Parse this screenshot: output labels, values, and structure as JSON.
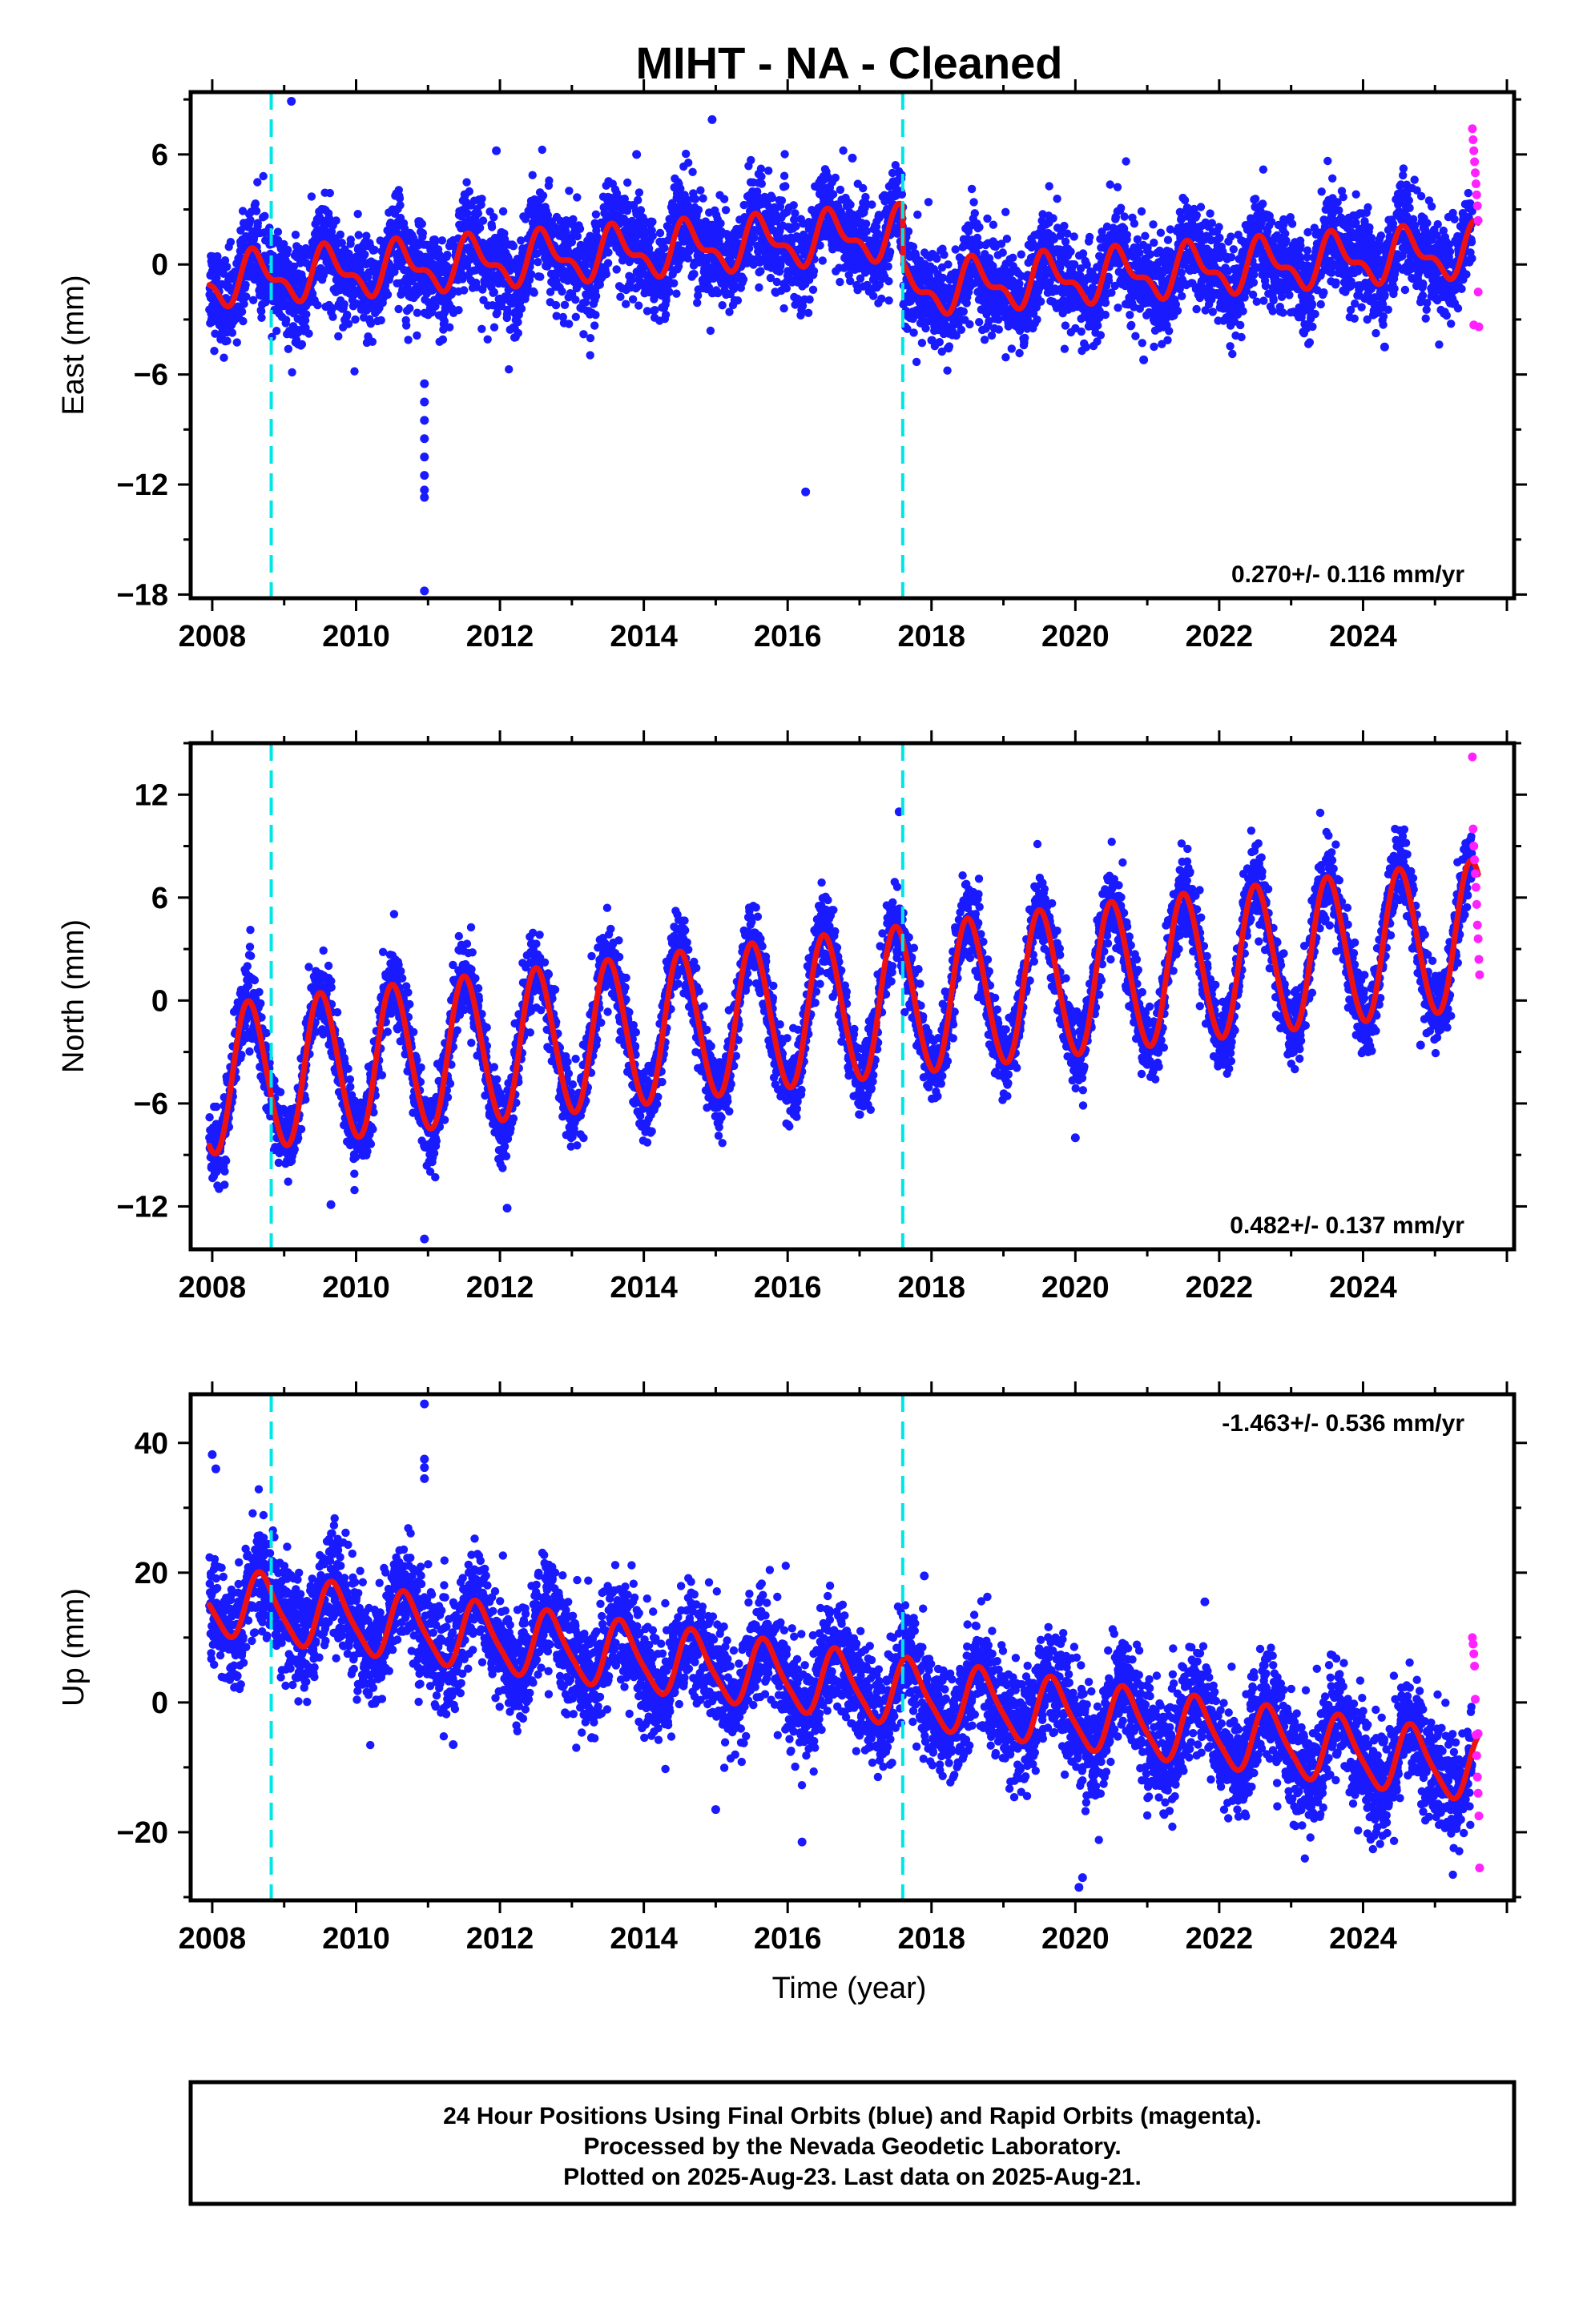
{
  "title": "MIHT  - NA - Cleaned",
  "xlabel": "Time (year)",
  "caption": {
    "lines": [
      "24 Hour Positions Using Final Orbits (blue) and Rapid Orbits (magenta).",
      "Processed by the Nevada Geodetic Laboratory.",
      "Plotted on 2025-Aug-23. Last data on 2025-Aug-21."
    ]
  },
  "colors": {
    "final_orbits": "#1a1aff",
    "rapid_orbits": "#ff22ff",
    "fit_line": "#ee1111",
    "event_line": "#00e5e5"
  },
  "chart_data": [
    {
      "type": "scatter",
      "component": "east",
      "ylabel": "East (mm)",
      "rate_label": "0.270+/- 0.116 mm/yr",
      "rate_position": "bottom-right",
      "xlim": [
        2007.7,
        2026.1
      ],
      "ylim": [
        -18.2,
        9.4
      ],
      "xticks": [
        2008,
        2010,
        2012,
        2014,
        2016,
        2018,
        2020,
        2022,
        2024
      ],
      "yticks": [
        6,
        0,
        -6,
        -12,
        -18
      ],
      "event_lines_x": [
        2008.82,
        2017.6
      ],
      "model": {
        "trend_mm_per_yr": 0.27,
        "offset_at_2008": -0.9,
        "step_at_2017_6_mm": -3.1,
        "annual_amplitude": 1.2,
        "annual_phase_peak": 2008.62,
        "semiannual_amplitude": 0.6,
        "scatter_sd_mm": 1.3
      },
      "outliers": [
        [
          2009.1,
          8.9
        ],
        [
          2014.95,
          7.9
        ],
        [
          2010.95,
          -6.5
        ],
        [
          2010.95,
          -7.5
        ],
        [
          2010.95,
          -8.5
        ],
        [
          2010.95,
          -9.5
        ],
        [
          2010.95,
          -10.5
        ],
        [
          2010.95,
          -11.5
        ],
        [
          2010.95,
          -12.3
        ],
        [
          2010.95,
          -12.7
        ],
        [
          2010.95,
          -17.8
        ],
        [
          2016.25,
          -12.4
        ],
        [
          2011.95,
          6.2
        ],
        [
          2013.9,
          6.0
        ],
        [
          2016.9,
          5.8
        ],
        [
          2020.95,
          -5.2
        ],
        [
          2024.3,
          -4.5
        ]
      ],
      "rapid_orbit_points": [
        [
          2025.52,
          7.4
        ],
        [
          2025.53,
          6.8
        ],
        [
          2025.54,
          6.2
        ],
        [
          2025.55,
          5.6
        ],
        [
          2025.56,
          5.0
        ],
        [
          2025.57,
          4.4
        ],
        [
          2025.58,
          3.8
        ],
        [
          2025.59,
          3.2
        ],
        [
          2025.6,
          2.4
        ],
        [
          2025.6,
          -1.5
        ],
        [
          2025.61,
          -3.4
        ],
        [
          2025.54,
          -3.3
        ]
      ]
    },
    {
      "type": "scatter",
      "component": "north",
      "ylabel": "North (mm)",
      "rate_label": "0.482+/- 0.137 mm/yr",
      "rate_position": "bottom-right",
      "xlim": [
        2007.7,
        2026.1
      ],
      "ylim": [
        -14.5,
        15.0
      ],
      "xticks": [
        2008,
        2010,
        2012,
        2014,
        2016,
        2018,
        2020,
        2022,
        2024
      ],
      "yticks": [
        12,
        6,
        0,
        -6,
        -12
      ],
      "event_lines_x": [
        2008.82,
        2017.6
      ],
      "model": {
        "trend_mm_per_yr": 0.482,
        "offset_at_2008": -4.7,
        "step_at_2017_6_mm": 0.0,
        "annual_amplitude": 4.3,
        "annual_phase_peak": 2008.52,
        "semiannual_amplitude": 0.3,
        "scatter_sd_mm": 1.1
      },
      "outliers": [
        [
          2010.95,
          -13.9
        ],
        [
          2020.0,
          -8.0
        ],
        [
          2009.65,
          -11.9
        ],
        [
          2012.1,
          -12.1
        ],
        [
          2017.55,
          11.0
        ],
        [
          2024.8,
          -2.6
        ],
        [
          2010.5,
          1.8
        ]
      ],
      "rapid_orbit_points": [
        [
          2025.52,
          14.2
        ],
        [
          2025.53,
          10.0
        ],
        [
          2025.54,
          9.0
        ],
        [
          2025.55,
          8.2
        ],
        [
          2025.56,
          7.4
        ],
        [
          2025.57,
          6.6
        ],
        [
          2025.58,
          5.6
        ],
        [
          2025.59,
          4.4
        ],
        [
          2025.6,
          3.6
        ],
        [
          2025.61,
          2.4
        ],
        [
          2025.62,
          1.5
        ]
      ]
    },
    {
      "type": "scatter",
      "component": "up",
      "ylabel": "Up (mm)",
      "rate_label": "-1.463+/- 0.536 mm/yr",
      "rate_position": "top-right",
      "xlim": [
        2007.7,
        2026.1
      ],
      "ylim": [
        -30.5,
        47.5
      ],
      "xticks": [
        2008,
        2010,
        2012,
        2014,
        2016,
        2018,
        2020,
        2022,
        2024
      ],
      "yticks": [
        40,
        20,
        0,
        -20
      ],
      "event_lines_x": [
        2008.82,
        2017.6
      ],
      "model": {
        "trend_mm_per_yr": -1.463,
        "offset_at_2008": 15.5,
        "step_at_2017_6_mm": 0.0,
        "annual_amplitude": 5.0,
        "annual_phase_peak": 2008.7,
        "semiannual_amplitude": 1.0,
        "scatter_sd_mm": 4.2
      },
      "outliers": [
        [
          2010.95,
          46.0
        ],
        [
          2010.95,
          37.5
        ],
        [
          2010.95,
          36.2
        ],
        [
          2010.95,
          34.5
        ],
        [
          2008.0,
          38.2
        ],
        [
          2008.05,
          36.0
        ],
        [
          2011.35,
          -6.5
        ],
        [
          2017.9,
          19.5
        ],
        [
          2021.8,
          15.5
        ],
        [
          2020.05,
          -28.5
        ],
        [
          2020.1,
          -27.0
        ],
        [
          2016.2,
          -21.5
        ],
        [
          2015.0,
          -16.5
        ]
      ],
      "rapid_orbit_points": [
        [
          2025.52,
          10.0
        ],
        [
          2025.53,
          9.0
        ],
        [
          2025.54,
          7.5
        ],
        [
          2025.55,
          5.6
        ],
        [
          2025.56,
          0.5
        ],
        [
          2025.57,
          -5.0
        ],
        [
          2025.58,
          -8.2
        ],
        [
          2025.59,
          -11.5
        ],
        [
          2025.6,
          -14.0
        ],
        [
          2025.61,
          -17.5
        ],
        [
          2025.62,
          -25.5
        ],
        [
          2025.6,
          -4.8
        ]
      ]
    }
  ]
}
